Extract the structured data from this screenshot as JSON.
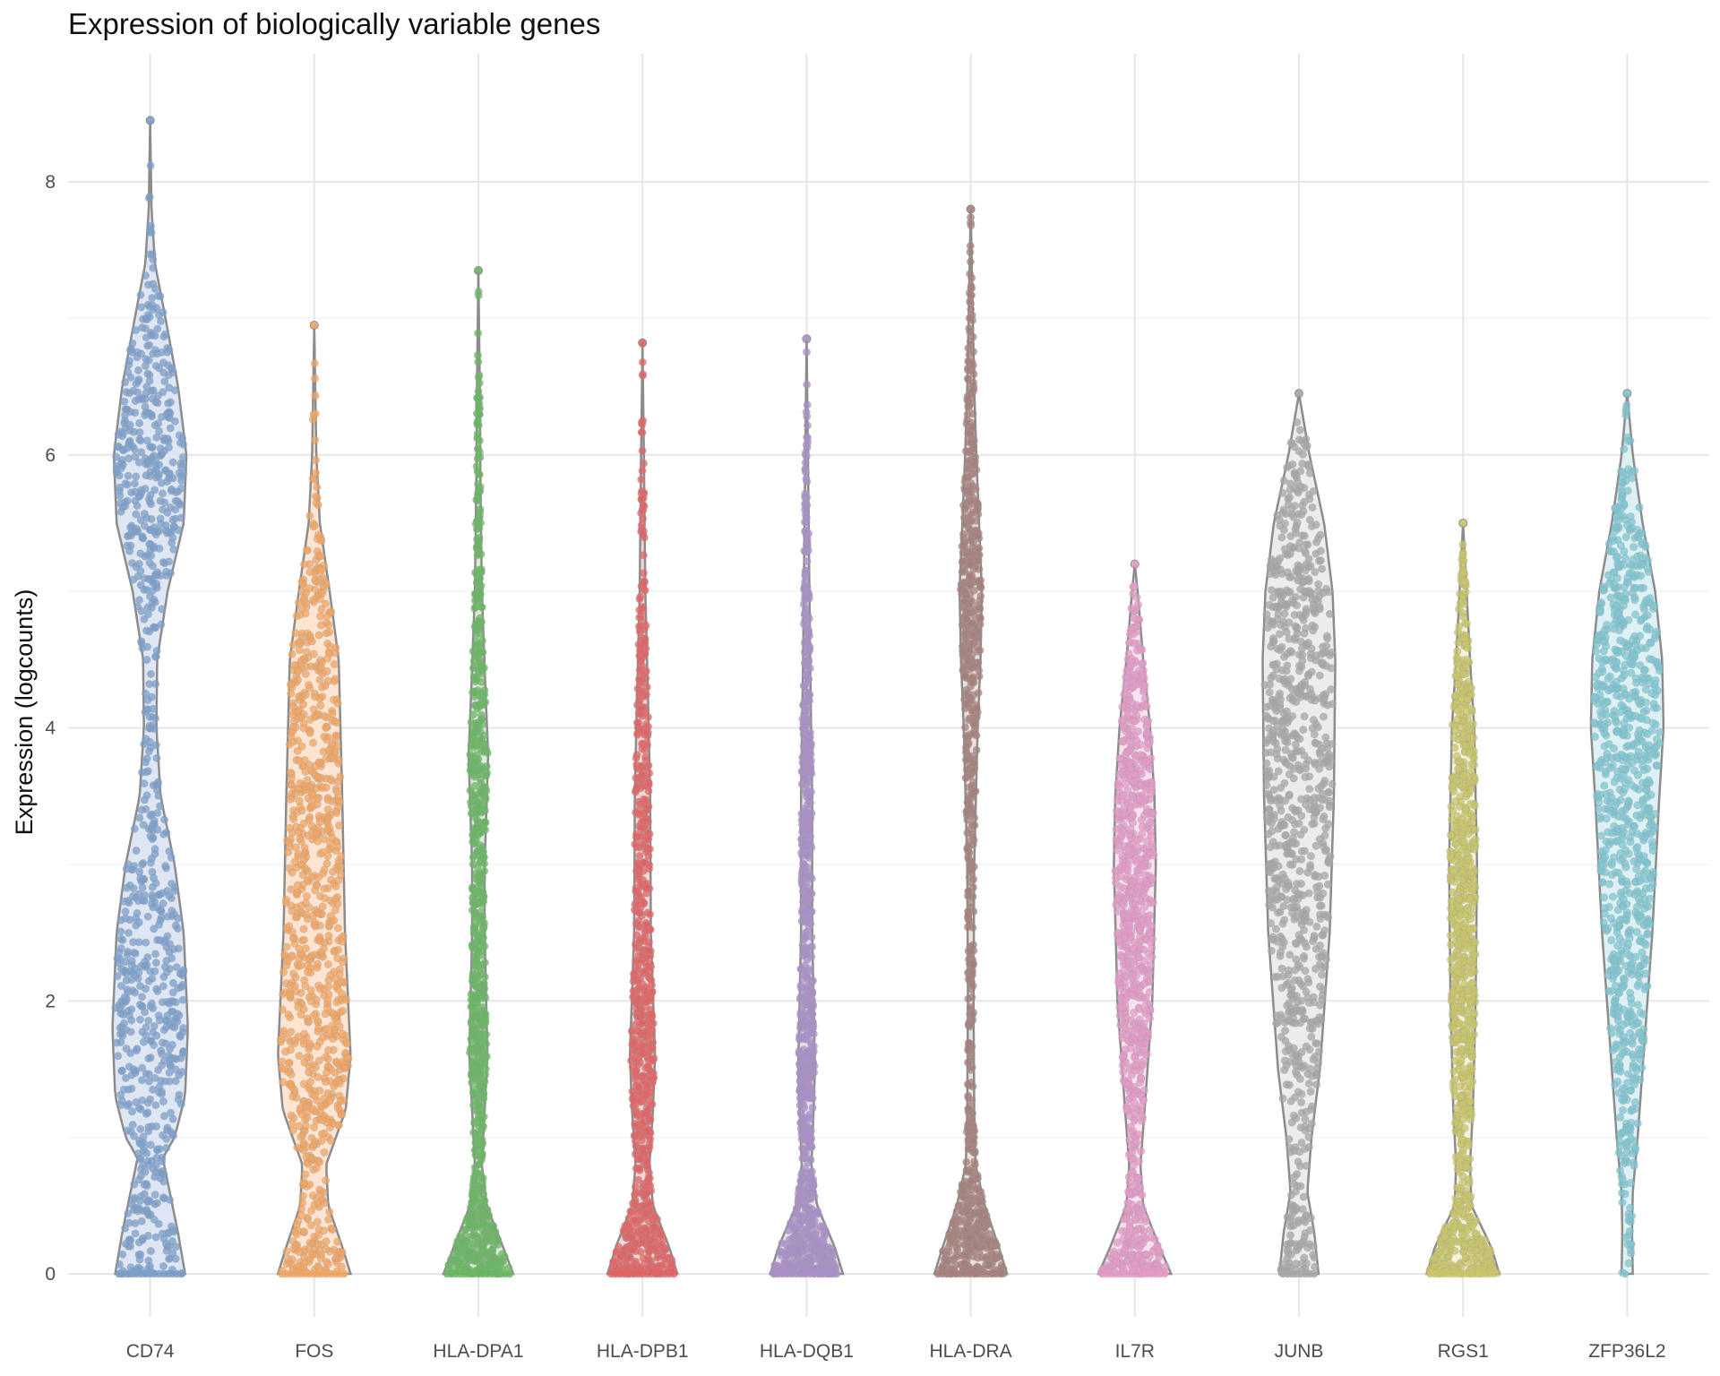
{
  "chart_data": {
    "type": "violin",
    "title": "Expression of biologically variable genes",
    "xlabel": "",
    "ylabel": "Expression (logcounts)",
    "ylim": [
      -0.2,
      8.8
    ],
    "yticks": [
      0,
      2,
      4,
      6,
      8
    ],
    "grid": true,
    "legend": "none",
    "categories": [
      "CD74",
      "FOS",
      "HLA-DPA1",
      "HLA-DPB1",
      "HLA-DQB1",
      "HLA-DRA",
      "IL7R",
      "JUNB",
      "RGS1",
      "ZFP36L2"
    ],
    "series": [
      {
        "category": "CD74",
        "color": "#7b9ec9",
        "fill": "#dde6f2",
        "max": 8.45,
        "density": [
          [
            0,
            0.5
          ],
          [
            0.3,
            0.4
          ],
          [
            0.6,
            0.28
          ],
          [
            0.85,
            0.18
          ],
          [
            1.0,
            0.35
          ],
          [
            1.3,
            0.5
          ],
          [
            1.8,
            0.54
          ],
          [
            2.5,
            0.48
          ],
          [
            3.0,
            0.35
          ],
          [
            3.5,
            0.15
          ],
          [
            4.0,
            0.09
          ],
          [
            4.5,
            0.1
          ],
          [
            5.0,
            0.25
          ],
          [
            5.5,
            0.48
          ],
          [
            6.0,
            0.52
          ],
          [
            6.5,
            0.4
          ],
          [
            7.0,
            0.22
          ],
          [
            7.4,
            0.07
          ],
          [
            7.8,
            0.02
          ],
          [
            8.45,
            0.0
          ]
        ]
      },
      {
        "category": "FOS",
        "color": "#f0a462",
        "fill": "#fde5d2",
        "max": 6.95,
        "density": [
          [
            0,
            0.52
          ],
          [
            0.2,
            0.4
          ],
          [
            0.5,
            0.2
          ],
          [
            0.8,
            0.17
          ],
          [
            1.2,
            0.45
          ],
          [
            1.6,
            0.52
          ],
          [
            2.5,
            0.44
          ],
          [
            3.5,
            0.4
          ],
          [
            4.5,
            0.35
          ],
          [
            5.0,
            0.22
          ],
          [
            5.5,
            0.08
          ],
          [
            6.0,
            0.03
          ],
          [
            6.95,
            0.0
          ]
        ]
      },
      {
        "category": "HLA-DPA1",
        "color": "#6ab561",
        "fill": "#dbeed8",
        "max": 7.35,
        "density": [
          [
            0,
            0.5
          ],
          [
            0.2,
            0.35
          ],
          [
            0.5,
            0.12
          ],
          [
            0.8,
            0.05
          ],
          [
            1.2,
            0.09
          ],
          [
            1.6,
            0.13
          ],
          [
            2.5,
            0.09
          ],
          [
            3.0,
            0.09
          ],
          [
            3.8,
            0.14
          ],
          [
            4.3,
            0.1
          ],
          [
            5.0,
            0.05
          ],
          [
            5.8,
            0.03
          ],
          [
            6.5,
            0.02
          ],
          [
            7.35,
            0.0
          ]
        ]
      },
      {
        "category": "HLA-DPB1",
        "color": "#e06464",
        "fill": "#f9d6d6",
        "max": 6.82,
        "density": [
          [
            0,
            0.5
          ],
          [
            0.2,
            0.38
          ],
          [
            0.5,
            0.15
          ],
          [
            0.8,
            0.1
          ],
          [
            1.2,
            0.15
          ],
          [
            1.6,
            0.18
          ],
          [
            2.5,
            0.12
          ],
          [
            3.5,
            0.11
          ],
          [
            4.2,
            0.08
          ],
          [
            5.0,
            0.04
          ],
          [
            6.0,
            0.02
          ],
          [
            6.82,
            0.0
          ]
        ]
      },
      {
        "category": "HLA-DQB1",
        "color": "#a98fc6",
        "fill": "#e8e0f1",
        "max": 6.85,
        "density": [
          [
            0,
            0.52
          ],
          [
            0.2,
            0.4
          ],
          [
            0.5,
            0.15
          ],
          [
            0.8,
            0.07
          ],
          [
            1.2,
            0.1
          ],
          [
            1.5,
            0.12
          ],
          [
            2.5,
            0.08
          ],
          [
            3.5,
            0.08
          ],
          [
            4.5,
            0.05
          ],
          [
            5.5,
            0.03
          ],
          [
            6.85,
            0.0
          ]
        ]
      },
      {
        "category": "HLA-DRA",
        "color": "#a6807b",
        "fill": "#ede1df",
        "max": 7.8,
        "density": [
          [
            0,
            0.52
          ],
          [
            0.2,
            0.4
          ],
          [
            0.5,
            0.2
          ],
          [
            0.8,
            0.07
          ],
          [
            1.2,
            0.05
          ],
          [
            2.0,
            0.04
          ],
          [
            3.0,
            0.05
          ],
          [
            4.0,
            0.1
          ],
          [
            4.5,
            0.14
          ],
          [
            5.0,
            0.16
          ],
          [
            5.5,
            0.12
          ],
          [
            6.0,
            0.08
          ],
          [
            6.5,
            0.05
          ],
          [
            7.0,
            0.03
          ],
          [
            7.8,
            0.0
          ]
        ]
      },
      {
        "category": "IL7R",
        "color": "#e39ac6",
        "fill": "#f9e1ef",
        "max": 5.2,
        "density": [
          [
            0,
            0.52
          ],
          [
            0.2,
            0.35
          ],
          [
            0.5,
            0.12
          ],
          [
            0.8,
            0.08
          ],
          [
            1.2,
            0.14
          ],
          [
            2.0,
            0.25
          ],
          [
            3.0,
            0.3
          ],
          [
            3.5,
            0.28
          ],
          [
            4.0,
            0.22
          ],
          [
            4.5,
            0.12
          ],
          [
            5.0,
            0.04
          ],
          [
            5.2,
            0.0
          ]
        ]
      },
      {
        "category": "JUNB",
        "color": "#a6a6a6",
        "fill": "#ececec",
        "max": 6.45,
        "density": [
          [
            0,
            0.28
          ],
          [
            0.3,
            0.22
          ],
          [
            0.6,
            0.12
          ],
          [
            1.0,
            0.18
          ],
          [
            1.5,
            0.3
          ],
          [
            2.5,
            0.44
          ],
          [
            3.5,
            0.5
          ],
          [
            4.5,
            0.52
          ],
          [
            5.0,
            0.48
          ],
          [
            5.5,
            0.36
          ],
          [
            6.0,
            0.15
          ],
          [
            6.45,
            0.0
          ]
        ]
      },
      {
        "category": "RGS1",
        "color": "#c9c467",
        "fill": "#f4f3d8",
        "max": 5.5,
        "density": [
          [
            0,
            0.52
          ],
          [
            0.2,
            0.4
          ],
          [
            0.5,
            0.12
          ],
          [
            0.8,
            0.1
          ],
          [
            1.2,
            0.14
          ],
          [
            2.0,
            0.18
          ],
          [
            3.0,
            0.2
          ],
          [
            4.0,
            0.16
          ],
          [
            4.5,
            0.1
          ],
          [
            5.0,
            0.05
          ],
          [
            5.5,
            0.0
          ]
        ]
      },
      {
        "category": "ZFP36L2",
        "color": "#7ec4d0",
        "fill": "#ddf1f4",
        "max": 6.45,
        "density": [
          [
            0,
            0.08
          ],
          [
            0.3,
            0.07
          ],
          [
            0.6,
            0.08
          ],
          [
            1.0,
            0.15
          ],
          [
            1.5,
            0.22
          ],
          [
            2.5,
            0.36
          ],
          [
            3.5,
            0.46
          ],
          [
            4.0,
            0.52
          ],
          [
            4.5,
            0.5
          ],
          [
            5.0,
            0.4
          ],
          [
            5.5,
            0.22
          ],
          [
            6.0,
            0.08
          ],
          [
            6.45,
            0.0
          ]
        ]
      }
    ]
  }
}
